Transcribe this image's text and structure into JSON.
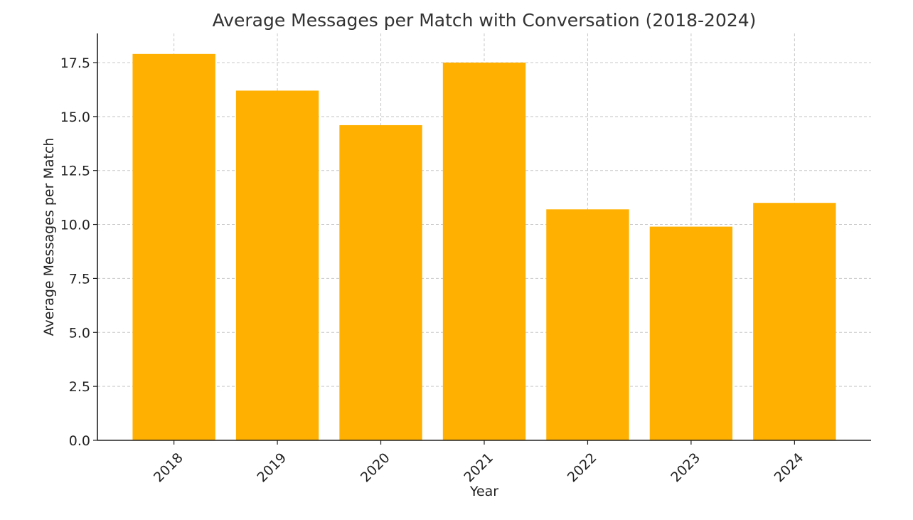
{
  "chart_data": {
    "type": "bar",
    "title": "Average Messages per Match with Conversation (2018-2024)",
    "xlabel": "Year",
    "ylabel": "Average Messages per Match",
    "categories": [
      "2018",
      "2019",
      "2020",
      "2021",
      "2022",
      "2023",
      "2024"
    ],
    "values": [
      17.9,
      16.2,
      14.6,
      17.5,
      10.7,
      9.9,
      11.0
    ],
    "ylim": [
      0,
      18.85
    ],
    "yticks": [
      0.0,
      2.5,
      5.0,
      7.5,
      10.0,
      12.5,
      15.0,
      17.5
    ],
    "ytick_labels": [
      "0.0",
      "2.5",
      "5.0",
      "7.5",
      "10.0",
      "12.5",
      "15.0",
      "17.5"
    ],
    "grid": true,
    "bar_color": "#FFB000",
    "x_tick_rotation_deg": 45
  }
}
